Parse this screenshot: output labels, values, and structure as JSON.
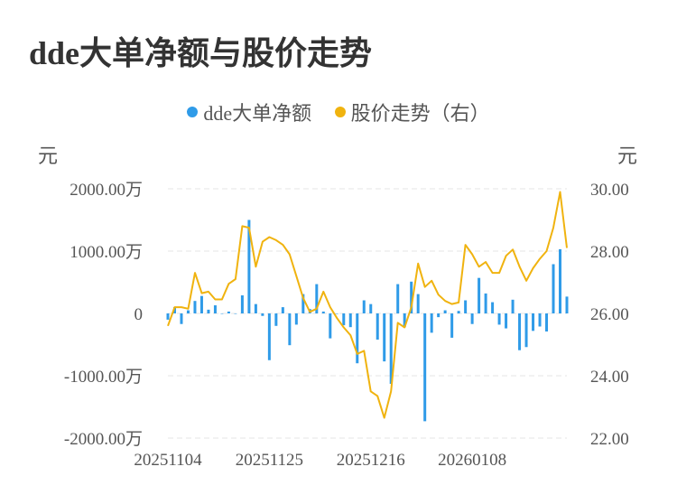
{
  "title": "dde大单净额与股价走势",
  "units": {
    "left": "元",
    "right": "元"
  },
  "legend": [
    {
      "label": "dde大单净额",
      "color": "#2f9be8"
    },
    {
      "label": "股价走势（右）",
      "color": "#f0b30f"
    }
  ],
  "chart_data": {
    "type": "bar",
    "title": "dde大单净额与股价走势",
    "x_ticks": [
      "20251104",
      "20251125",
      "20251216",
      "20260108"
    ],
    "y_left": {
      "unit": "元",
      "min": -2000,
      "max": 2000,
      "ticks": [
        "2000.00万",
        "1000.00万",
        "0",
        "-1000.00万",
        "-2000.00万"
      ]
    },
    "y_right": {
      "unit": "元",
      "min": 22,
      "max": 30,
      "ticks": [
        "30.00",
        "28.00",
        "26.00",
        "24.00",
        "22.00"
      ]
    },
    "grid": true,
    "legend_position": "top",
    "series": [
      {
        "name": "dde大单净额",
        "type": "bar",
        "axis": "left",
        "color": "#2f9be8",
        "unit": "万",
        "values": [
          -100,
          100,
          -170,
          50,
          200,
          280,
          60,
          130,
          0,
          30,
          0,
          290,
          1500,
          150,
          -40,
          -750,
          -200,
          100,
          -510,
          -180,
          310,
          70,
          470,
          30,
          -400,
          0,
          -190,
          -220,
          -800,
          210,
          150,
          -420,
          -770,
          -1130,
          470,
          -220,
          510,
          310,
          -1730,
          -310,
          -60,
          50,
          -390,
          40,
          210,
          -170,
          570,
          320,
          180,
          -180,
          -240,
          220,
          -590,
          -540,
          -280,
          -210,
          -290,
          790,
          1030,
          270
        ]
      },
      {
        "name": "股价走势（右）",
        "type": "line",
        "axis": "right",
        "color": "#f0b30f",
        "values": [
          25.6,
          26.2,
          26.2,
          26.15,
          27.3,
          26.65,
          26.7,
          26.45,
          26.45,
          26.95,
          27.1,
          28.8,
          28.75,
          27.5,
          28.3,
          28.45,
          28.35,
          28.2,
          27.9,
          27.2,
          26.5,
          26.05,
          26.15,
          26.7,
          26.2,
          25.85,
          25.55,
          25.3,
          24.7,
          24.8,
          23.5,
          23.35,
          22.65,
          23.5,
          25.7,
          25.55,
          26.2,
          27.6,
          26.85,
          27.05,
          26.6,
          26.4,
          26.3,
          26.35,
          28.2,
          27.9,
          27.5,
          27.65,
          27.3,
          27.3,
          27.85,
          28.05,
          27.5,
          27.05,
          27.45,
          27.75,
          28.0,
          28.75,
          29.9,
          28.1
        ]
      }
    ]
  }
}
